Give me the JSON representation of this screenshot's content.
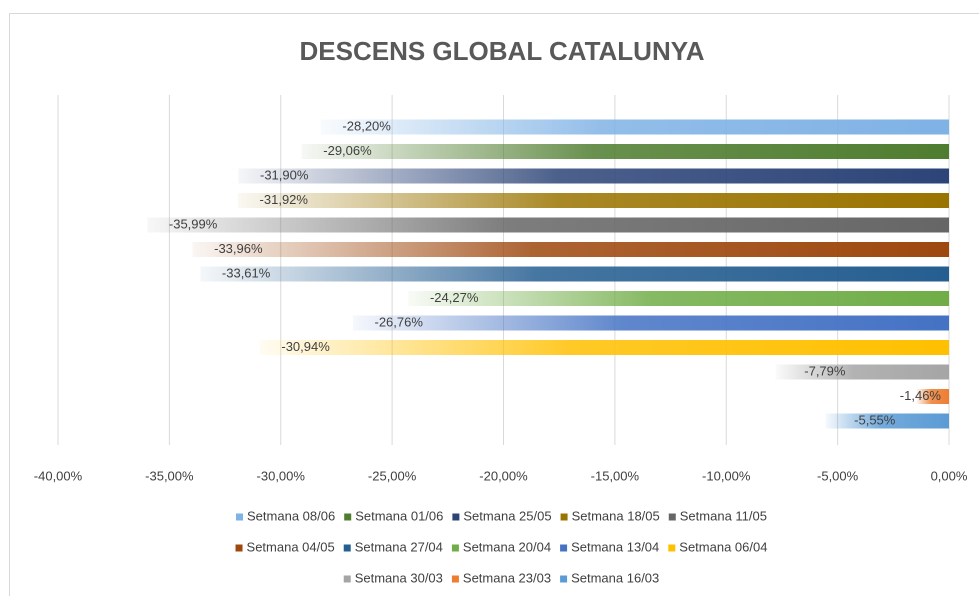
{
  "chart_data": {
    "type": "bar",
    "orientation": "horizontal",
    "title": "DESCENS GLOBAL CATALUNYA",
    "series": [
      {
        "name": "Setmana 08/06",
        "color": "#7fb2e5",
        "values": [
          -28.2
        ],
        "value_labels": [
          "-28,20%"
        ]
      },
      {
        "name": "Setmana 01/06",
        "color": "#4f7d2f",
        "values": [
          -29.06
        ],
        "value_labels": [
          "-29,06%"
        ]
      },
      {
        "name": "Setmana 25/05",
        "color": "#2c4478",
        "values": [
          -31.9
        ],
        "value_labels": [
          "-31,90%"
        ]
      },
      {
        "name": "Setmana 18/05",
        "color": "#9a7400",
        "values": [
          -31.92
        ],
        "value_labels": [
          "-31,92%"
        ]
      },
      {
        "name": "Setmana 11/05",
        "color": "#666666",
        "values": [
          -35.99
        ],
        "value_labels": [
          "-35,99%"
        ]
      },
      {
        "name": "Setmana 04/05",
        "color": "#9e480e",
        "values": [
          -33.96
        ],
        "value_labels": [
          "-33,96%"
        ]
      },
      {
        "name": "Setmana 27/04",
        "color": "#255e91",
        "values": [
          -33.61
        ],
        "value_labels": [
          "-33,61%"
        ]
      },
      {
        "name": "Setmana 20/04",
        "color": "#70ad47",
        "values": [
          -24.27
        ],
        "value_labels": [
          "-24,27%"
        ]
      },
      {
        "name": "Setmana 13/04",
        "color": "#4472c4",
        "values": [
          -26.76
        ],
        "value_labels": [
          "-26,76%"
        ]
      },
      {
        "name": "Setmana 06/04",
        "color": "#ffc000",
        "values": [
          -30.94
        ],
        "value_labels": [
          "-30,94%"
        ]
      },
      {
        "name": "Setmana 30/03",
        "color": "#a5a5a5",
        "values": [
          -7.79
        ],
        "value_labels": [
          "-7,79%"
        ]
      },
      {
        "name": "Setmana 23/03",
        "color": "#ed7d31",
        "values": [
          -1.46
        ],
        "value_labels": [
          "-1,46%"
        ]
      },
      {
        "name": "Setmana 16/03",
        "color": "#5b9bd5",
        "values": [
          -5.55
        ],
        "value_labels": [
          "-5,55%"
        ]
      }
    ],
    "xlim": [
      -40,
      0
    ],
    "xticks": [
      {
        "value": -40,
        "label": "-40,00%"
      },
      {
        "value": -35,
        "label": "-35,00%"
      },
      {
        "value": -30,
        "label": "-30,00%"
      },
      {
        "value": -25,
        "label": "-25,00%"
      },
      {
        "value": -20,
        "label": "-20,00%"
      },
      {
        "value": -15,
        "label": "-15,00%"
      },
      {
        "value": -10,
        "label": "-10,00%"
      },
      {
        "value": -5,
        "label": "-5,00%"
      },
      {
        "value": 0,
        "label": "0,00%"
      }
    ],
    "grid": true,
    "legend": "bottom"
  }
}
